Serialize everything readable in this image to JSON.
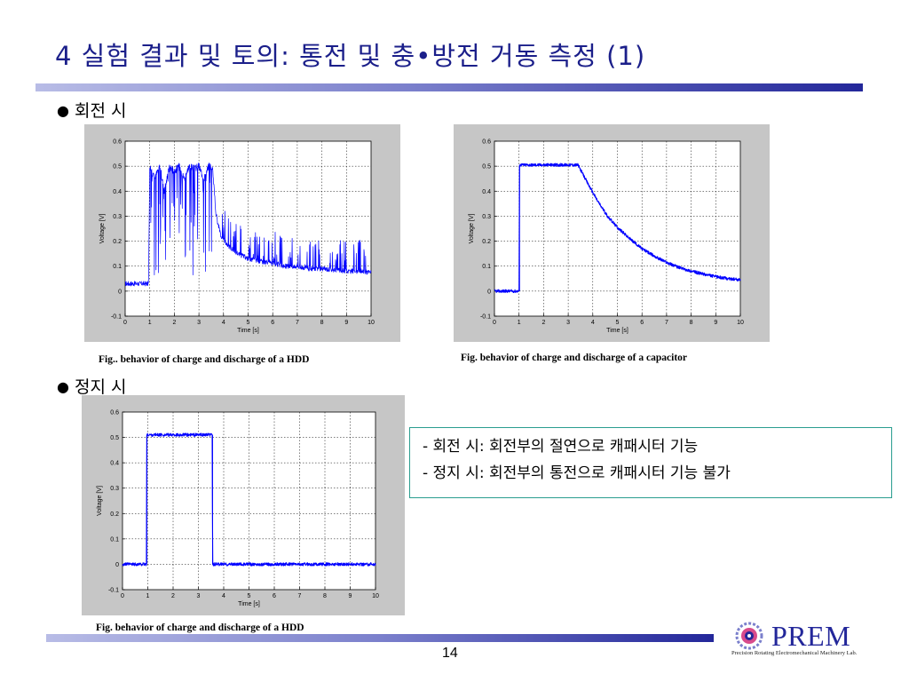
{
  "slide": {
    "title": "4 실험 결과 및 토의: 통전 및 충•방전 거동 측정 (1)",
    "page_number": "14"
  },
  "sections": {
    "rotating": {
      "bullet": "●",
      "label": "회전 시"
    },
    "stopped": {
      "bullet": "●",
      "label": "정지 시"
    }
  },
  "captions": {
    "hdd_rotating": "Fig.. behavior of charge and discharge of a HDD",
    "capacitor": "Fig.  behavior of charge and discharge of a capacitor",
    "hdd_stopped": "Fig.  behavior of charge and discharge of a HDD"
  },
  "notes": [
    "- 회전 시: 회전부의 절연으로 캐패시터 기능",
    "- 정지 시: 회전부의 통전으로 캐패시터 기능 불가"
  ],
  "logo": {
    "name": "PREM",
    "subtitle": "Precision Rotating Electromechanical Machinery Lab.",
    "icon": "gear-icon"
  },
  "colors": {
    "title": "#1b1f8a",
    "bar_dark": "#23279a",
    "signal": "#0000ff",
    "note_border": "#2a9d8f"
  },
  "chart_data": [
    {
      "id": "hdd-rotating",
      "type": "line",
      "xlabel": "Time [s]",
      "ylabel": "Voltage [V]",
      "xlim": [
        0,
        10
      ],
      "ylim": [
        -0.1,
        0.6
      ],
      "xticks": [
        "0",
        "1",
        "2",
        "3",
        "4",
        "5",
        "6",
        "7",
        "8",
        "9",
        "10"
      ],
      "yticks": [
        "-0.1",
        "0",
        "0.1",
        "0.2",
        "0.3",
        "0.4",
        "0.5",
        "0.6"
      ],
      "grid": true,
      "series": [
        {
          "x": [
            0,
            0.95,
            1.0,
            1.2,
            1.4,
            1.6,
            1.8,
            2.0,
            2.2,
            2.4,
            2.6,
            2.8,
            3.0,
            3.2,
            3.4,
            3.55,
            3.7,
            3.9,
            4.2,
            4.6,
            5.0,
            5.5,
            6.0,
            6.5,
            7.0,
            7.5,
            8.0,
            8.5,
            9.0,
            9.5,
            10.0
          ],
          "y": [
            0.03,
            0.03,
            0.5,
            0.45,
            0.5,
            0.4,
            0.5,
            0.48,
            0.5,
            0.45,
            0.5,
            0.49,
            0.5,
            0.45,
            0.5,
            0.5,
            0.3,
            0.22,
            0.18,
            0.15,
            0.13,
            0.12,
            0.11,
            0.1,
            0.1,
            0.09,
            0.09,
            0.085,
            0.08,
            0.08,
            0.075
          ]
        }
      ],
      "noise": "high"
    },
    {
      "id": "capacitor",
      "type": "line",
      "xlabel": "Time [s]",
      "ylabel": "Voltage [V]",
      "xlim": [
        0,
        10
      ],
      "ylim": [
        -0.1,
        0.6
      ],
      "xticks": [
        "0",
        "1",
        "2",
        "3",
        "4",
        "5",
        "6",
        "7",
        "8",
        "9",
        "10"
      ],
      "yticks": [
        "-0.1",
        "0",
        "0.1",
        "0.2",
        "0.3",
        "0.4",
        "0.5",
        "0.6"
      ],
      "grid": true,
      "series": [
        {
          "x": [
            0,
            1.0,
            1.02,
            3.4,
            3.8,
            4.2,
            4.6,
            5.0,
            5.5,
            6.0,
            6.5,
            7.0,
            7.5,
            8.0,
            8.5,
            9.0,
            9.5,
            10.0
          ],
          "y": [
            0.0,
            0.0,
            0.505,
            0.505,
            0.43,
            0.36,
            0.3,
            0.255,
            0.21,
            0.17,
            0.14,
            0.115,
            0.095,
            0.08,
            0.068,
            0.058,
            0.05,
            0.045
          ]
        }
      ],
      "noise": "low"
    },
    {
      "id": "hdd-stopped",
      "type": "line",
      "xlabel": "Time [s]",
      "ylabel": "Voltage [V]",
      "xlim": [
        0,
        10
      ],
      "ylim": [
        -0.1,
        0.6
      ],
      "xticks": [
        "0",
        "1",
        "2",
        "3",
        "4",
        "5",
        "6",
        "7",
        "8",
        "9",
        "10"
      ],
      "yticks": [
        "-0.1",
        "0",
        "0.1",
        "0.2",
        "0.3",
        "0.4",
        "0.5",
        "0.6"
      ],
      "grid": true,
      "series": [
        {
          "x": [
            0,
            0.95,
            0.96,
            3.55,
            3.56,
            10.0
          ],
          "y": [
            0.0,
            0.0,
            0.51,
            0.51,
            0.0,
            0.0
          ]
        }
      ],
      "noise": "low"
    }
  ]
}
